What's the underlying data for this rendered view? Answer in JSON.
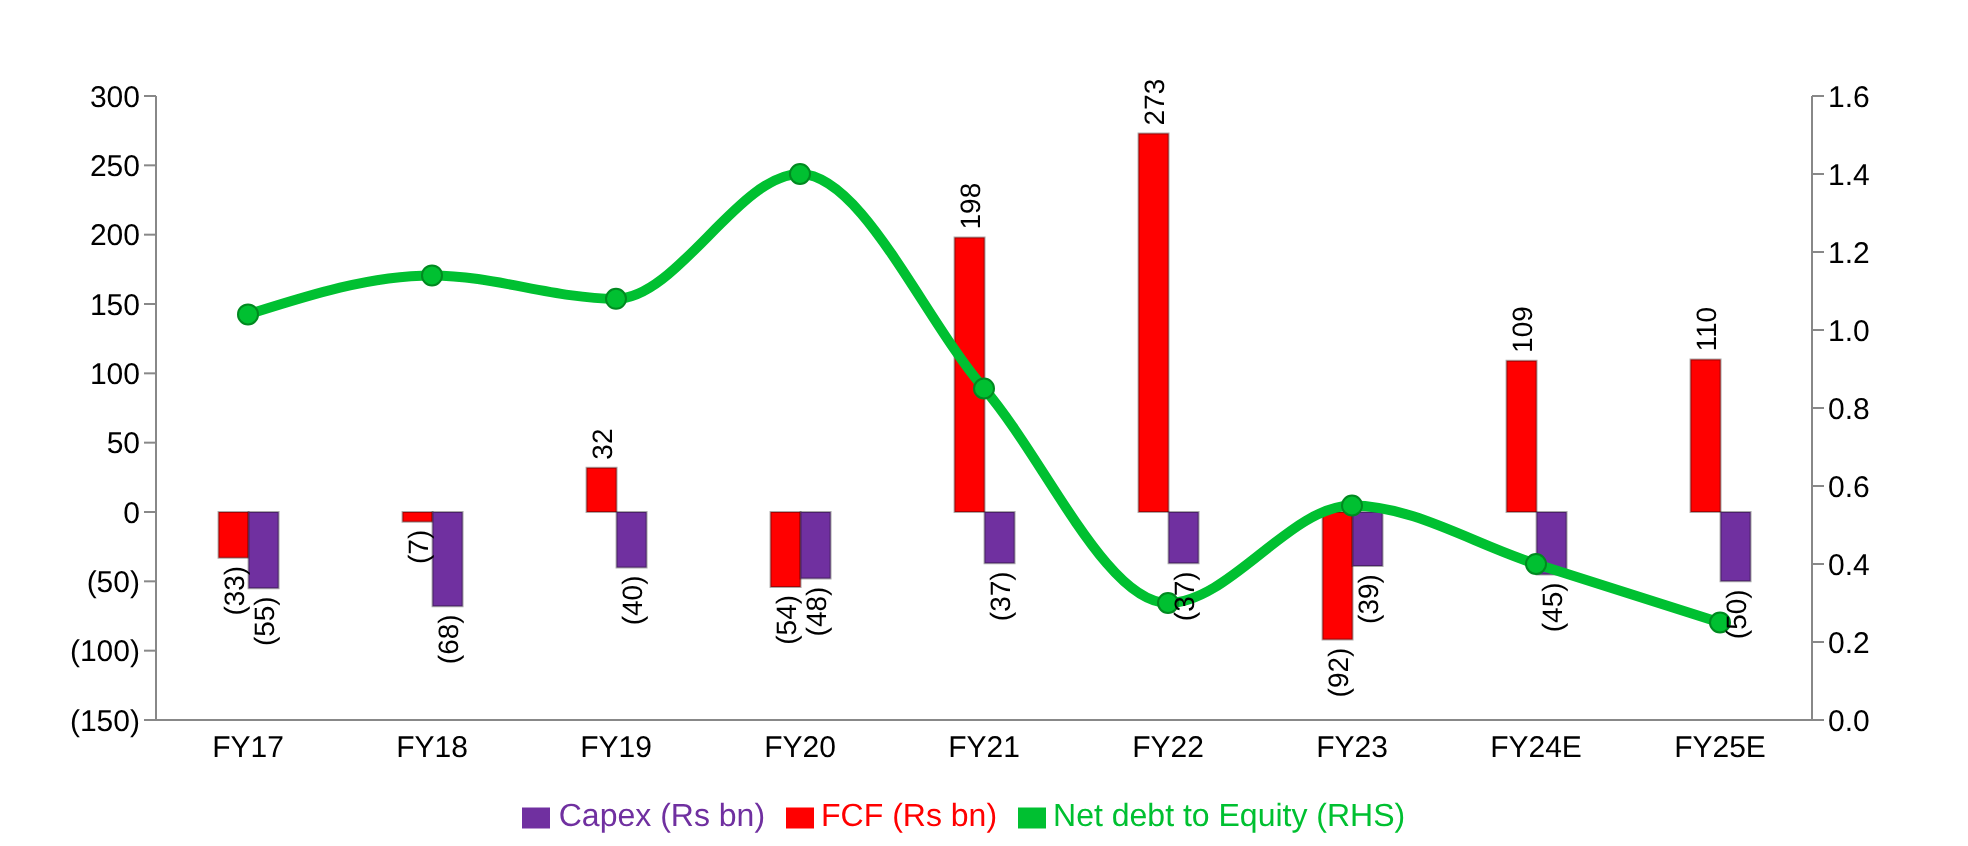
{
  "chart_data": {
    "type": "bar",
    "categories": [
      "FY17",
      "FY18",
      "FY19",
      "FY20",
      "FY21",
      "FY22",
      "FY23",
      "FY24E",
      "FY25E"
    ],
    "series": [
      {
        "name": "FCF (Rs bn)",
        "color": "#ff0000",
        "values": [
          -33,
          -7,
          32,
          -54,
          198,
          273,
          -92,
          109,
          110
        ],
        "value_labels": [
          "(33)",
          "(7)",
          "32",
          "(54)",
          "198",
          "273",
          "(92)",
          "109",
          "110"
        ]
      },
      {
        "name": "Capex (Rs bn)",
        "color": "#7030a0",
        "values": [
          -55,
          -68,
          -40,
          -48,
          -37,
          -37,
          -39,
          -45,
          -50
        ],
        "value_labels": [
          "(55)",
          "(68)",
          "(40)",
          "(48)",
          "(37)",
          "(37)",
          "(39)",
          "(45)",
          "(50)"
        ]
      },
      {
        "name": "Net debt to Equity (RHS)",
        "type": "line",
        "axis": "y2",
        "color": "#00c031",
        "values": [
          1.04,
          1.14,
          1.08,
          1.4,
          0.85,
          0.3,
          0.55,
          0.4,
          0.25
        ]
      }
    ],
    "ylim": [
      -150,
      300
    ],
    "yticks": [
      {
        "value": -150,
        "label": "(150)"
      },
      {
        "value": -100,
        "label": "(100)"
      },
      {
        "value": -50,
        "label": "(50)"
      },
      0,
      50,
      100,
      150,
      200,
      250,
      300
    ],
    "y2lim": [
      0,
      1.6
    ],
    "y2ticks": [
      {
        "value": 0,
        "label": "0.0"
      },
      {
        "value": 0.2,
        "label": "0.2"
      },
      {
        "value": 0.4,
        "label": "0.4"
      },
      {
        "value": 0.6,
        "label": "0.6"
      },
      {
        "value": 0.8,
        "label": "0.8"
      },
      {
        "value": 1,
        "label": "1.0"
      },
      {
        "value": 1.2,
        "label": "1.2"
      },
      {
        "value": 1.4,
        "label": "1.4"
      },
      {
        "value": 1.6,
        "label": "1.6"
      }
    ],
    "legend": "bottom",
    "marker": "circle",
    "grid": false
  }
}
